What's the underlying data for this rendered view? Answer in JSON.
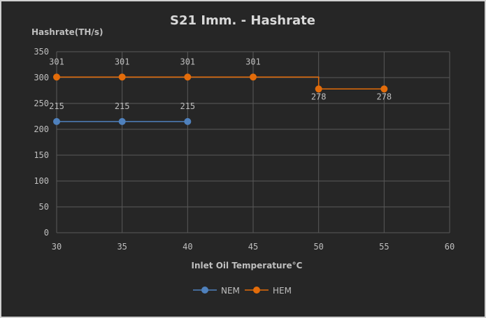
{
  "chart_data": {
    "type": "line",
    "title": "S21 Imm. - Hashrate",
    "xlabel": "Inlet Oil Temperature°C",
    "ylabel": "Hashrate(TH/s)",
    "xlim": [
      30,
      60
    ],
    "ylim": [
      0,
      350
    ],
    "x_ticks": [
      30,
      35,
      40,
      45,
      50,
      55,
      60
    ],
    "y_ticks": [
      0,
      50,
      100,
      150,
      200,
      250,
      300,
      350
    ],
    "grid": true,
    "legend_position": "bottom",
    "series": [
      {
        "name": "NEM",
        "color": "#4f81bd",
        "x": [
          30,
          35,
          40
        ],
        "values": [
          215,
          215,
          215
        ],
        "labels": [
          "215",
          "215",
          "215"
        ],
        "label_position": "above"
      },
      {
        "name": "HEM",
        "color": "#e36c0a",
        "x": [
          30,
          35,
          40,
          45,
          50,
          55
        ],
        "values": [
          301,
          301,
          301,
          301,
          278,
          278
        ],
        "labels": [
          "301",
          "301",
          "301",
          "301",
          "278",
          "278"
        ],
        "label_position": [
          "above",
          "above",
          "above",
          "above",
          "below",
          "below"
        ],
        "step": true
      }
    ]
  },
  "colors": {
    "background": "#262626",
    "grid": "#595959",
    "text": "#bfbfbf",
    "title": "#d9d9d9"
  }
}
